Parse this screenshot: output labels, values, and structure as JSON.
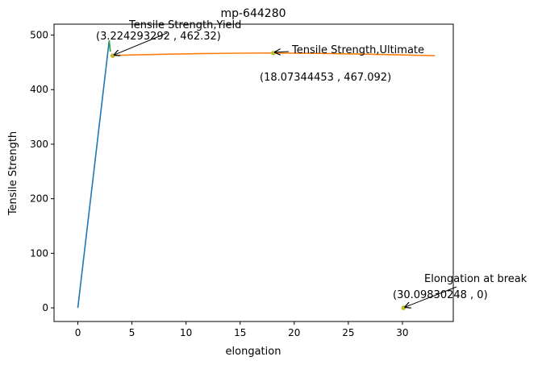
{
  "chart_data": {
    "type": "line",
    "title": "mp-644280",
    "xlabel": "elongation",
    "ylabel": "Tensile Strength",
    "xlim": [
      -2.2,
      34.7
    ],
    "ylim": [
      -25,
      520
    ],
    "xticks": [
      0,
      5,
      10,
      15,
      20,
      25,
      30
    ],
    "yticks": [
      0,
      100,
      200,
      300,
      400,
      500
    ],
    "grid": false,
    "series": [
      {
        "color": "#1f77b4",
        "points": [
          [
            0,
            0
          ],
          [
            2.9,
            490
          ]
        ]
      },
      {
        "color": "#2ca02c",
        "points": [
          [
            2.9,
            490
          ],
          [
            3.0,
            470
          ]
        ]
      },
      {
        "color": "#ff7f0e",
        "points": [
          [
            3.0,
            462.6
          ],
          [
            5,
            463.6
          ],
          [
            8,
            464.9
          ],
          [
            12,
            466.2
          ],
          [
            15,
            466.8
          ],
          [
            18.07,
            467.092
          ],
          [
            22,
            466.6
          ],
          [
            26,
            465.2
          ],
          [
            30,
            463.6
          ],
          [
            33,
            462.2
          ]
        ]
      }
    ],
    "markers": [
      {
        "x": 3.224293292,
        "y": 462.32,
        "color": "#bcbd22"
      },
      {
        "x": 18.07344453,
        "y": 467.092,
        "color": "#bcbd22"
      },
      {
        "x": 30.09830248,
        "y": 0,
        "color": "#bcbd22"
      }
    ],
    "annotations": [
      {
        "title": "Tensile Strength,Yield",
        "coords": "(3.224293292 , 462.32)",
        "target": [
          3.224293292,
          462.32
        ]
      },
      {
        "title": "Tensile Strength,Ultimate",
        "coords": "(18.07344453 , 467.092)",
        "target": [
          18.07344453,
          467.092
        ]
      },
      {
        "title": "Elongation at break",
        "coords": "(30.09830248 , 0)",
        "target": [
          30.09830248,
          0
        ]
      }
    ]
  }
}
